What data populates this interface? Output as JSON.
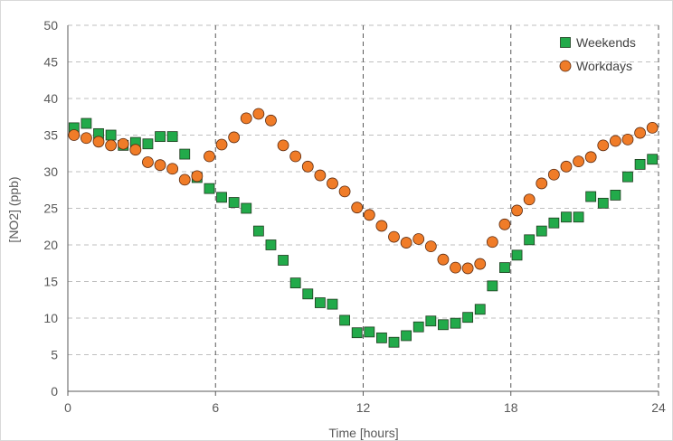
{
  "chart_data": {
    "type": "scatter",
    "title": "",
    "xlabel": "Time [hours]",
    "ylabel": "[NO2] (ppb)",
    "xlim": [
      0,
      24
    ],
    "ylim": [
      0,
      50
    ],
    "xticks": [
      0,
      6,
      12,
      18,
      24
    ],
    "yticks": [
      0,
      5,
      10,
      15,
      20,
      25,
      30,
      35,
      40,
      45,
      50
    ],
    "grid": {
      "vertical": "dashed",
      "horizontal": "dashed"
    },
    "legend_position": "top-right",
    "series": [
      {
        "name": "Weekends",
        "marker": "square",
        "color": "#22aa4a",
        "edge_color": "#1f3b1f",
        "x": [
          0.25,
          0.75,
          1.25,
          1.75,
          2.25,
          2.75,
          3.25,
          3.75,
          4.25,
          4.75,
          5.25,
          5.75,
          6.25,
          6.75,
          7.25,
          7.75,
          8.25,
          8.75,
          9.25,
          9.75,
          10.25,
          10.75,
          11.25,
          11.75,
          12.25,
          12.75,
          13.25,
          13.75,
          14.25,
          14.75,
          15.25,
          15.75,
          16.25,
          16.75,
          17.25,
          17.75,
          18.25,
          18.75,
          19.25,
          19.75,
          20.25,
          20.75,
          21.25,
          21.75,
          22.25,
          22.75,
          23.25,
          23.75
        ],
        "y": [
          36.0,
          36.6,
          35.2,
          35.0,
          33.6,
          34.0,
          33.8,
          34.8,
          34.8,
          32.4,
          29.2,
          27.7,
          26.5,
          25.8,
          25.0,
          21.9,
          20.0,
          17.9,
          14.8,
          13.3,
          12.1,
          11.9,
          9.7,
          8.0,
          8.1,
          7.3,
          6.7,
          7.6,
          8.8,
          9.6,
          9.1,
          9.3,
          10.1,
          11.2,
          14.4,
          16.9,
          18.6,
          20.7,
          21.9,
          23.0,
          23.8,
          23.8,
          26.6,
          25.7,
          26.8,
          29.3,
          31.0,
          31.7
        ]
      },
      {
        "name": "Workdays",
        "marker": "circle",
        "color": "#f07c28",
        "edge_color": "#5a2a10",
        "x": [
          0.25,
          0.75,
          1.25,
          1.75,
          2.25,
          2.75,
          3.25,
          3.75,
          4.25,
          4.75,
          5.25,
          5.75,
          6.25,
          6.75,
          7.25,
          7.75,
          8.25,
          8.75,
          9.25,
          9.75,
          10.25,
          10.75,
          11.25,
          11.75,
          12.25,
          12.75,
          13.25,
          13.75,
          14.25,
          14.75,
          15.25,
          15.75,
          16.25,
          16.75,
          17.25,
          17.75,
          18.25,
          18.75,
          19.25,
          19.75,
          20.25,
          20.75,
          21.25,
          21.75,
          22.25,
          22.75,
          23.25,
          23.75
        ],
        "y": [
          35.0,
          34.6,
          34.1,
          33.6,
          33.8,
          33.0,
          31.3,
          30.9,
          30.4,
          28.9,
          29.4,
          32.1,
          33.7,
          34.7,
          37.3,
          37.9,
          37.0,
          33.6,
          32.1,
          30.7,
          29.5,
          28.4,
          27.3,
          25.1,
          24.1,
          22.6,
          21.1,
          20.3,
          20.8,
          19.8,
          18.0,
          16.9,
          16.8,
          17.4,
          20.4,
          22.8,
          24.7,
          26.2,
          28.4,
          29.6,
          30.7,
          31.4,
          32.0,
          33.6,
          34.2,
          34.4,
          35.3,
          36.0
        ]
      }
    ]
  }
}
